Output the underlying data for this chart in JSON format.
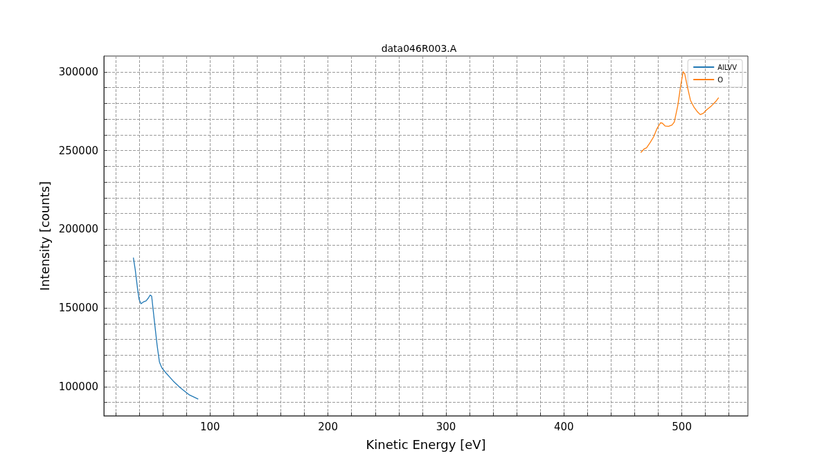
{
  "chart_data": {
    "type": "line",
    "title": "data046R003.A",
    "xlabel": "Kinetic Energy [eV]",
    "ylabel": "Intensity [counts]",
    "xlim": [
      10,
      556
    ],
    "ylim": [
      81500,
      310000
    ],
    "xticks": [
      {
        "value": 20,
        "label": null
      },
      {
        "value": 40,
        "label": null
      },
      {
        "value": 60,
        "label": null
      },
      {
        "value": 80,
        "label": null
      },
      100,
      {
        "value": 120,
        "label": null
      },
      {
        "value": 140,
        "label": null
      },
      {
        "value": 160,
        "label": null
      },
      {
        "value": 180,
        "label": null
      },
      200,
      {
        "value": 220,
        "label": null
      },
      {
        "value": 240,
        "label": null
      },
      {
        "value": 260,
        "label": null
      },
      {
        "value": 280,
        "label": null
      },
      300,
      {
        "value": 320,
        "label": null
      },
      {
        "value": 340,
        "label": null
      },
      {
        "value": 360,
        "label": null
      },
      {
        "value": 380,
        "label": null
      },
      400,
      {
        "value": 420,
        "label": null
      },
      {
        "value": 440,
        "label": null
      },
      {
        "value": 460,
        "label": null
      },
      {
        "value": 480,
        "label": null
      },
      500,
      {
        "value": 520,
        "label": null
      },
      {
        "value": 540,
        "label": null
      }
    ],
    "yticks": [
      {
        "value": 90000,
        "label": null
      },
      100000,
      {
        "value": 110000,
        "label": null
      },
      {
        "value": 120000,
        "label": null
      },
      {
        "value": 130000,
        "label": null
      },
      {
        "value": 140000,
        "label": null
      },
      150000,
      {
        "value": 160000,
        "label": null
      },
      {
        "value": 170000,
        "label": null
      },
      {
        "value": 180000,
        "label": null
      },
      {
        "value": 190000,
        "label": null
      },
      200000,
      {
        "value": 210000,
        "label": null
      },
      {
        "value": 220000,
        "label": null
      },
      {
        "value": 230000,
        "label": null
      },
      {
        "value": 240000,
        "label": null
      },
      250000,
      {
        "value": 260000,
        "label": null
      },
      {
        "value": 270000,
        "label": null
      },
      {
        "value": 280000,
        "label": null
      },
      {
        "value": 290000,
        "label": null
      },
      300000
    ],
    "grid": true,
    "legend": "top right",
    "marker": "none",
    "line_style": "solid",
    "series": [
      {
        "name": "AlLVV",
        "color": "#1f77b4",
        "x": [
          35.0,
          36.6,
          38.5,
          39.9,
          41.5,
          43.5,
          45.8,
          47.7,
          49.3,
          50.5,
          51.7,
          53.2,
          55.2,
          57.1,
          59.1,
          63.0,
          68.9,
          74.8,
          82.6,
          90.0
        ],
        "values": [
          182000,
          174300,
          162500,
          155300,
          152700,
          153800,
          154500,
          156300,
          158200,
          157500,
          149400,
          139100,
          125900,
          115700,
          112000,
          108400,
          103500,
          99300,
          94700,
          92100
        ]
      },
      {
        "name": "O",
        "color": "#ff7f0e",
        "x": [
          465.2,
          468.2,
          470.1,
          473.0,
          476.0,
          478.9,
          481.9,
          483.4,
          485.8,
          488.7,
          491.7,
          493.6,
          496.5,
          499.1,
          501.1,
          502.4,
          504.4,
          507.3,
          510.3,
          513.2,
          515.6,
          518.1,
          521.0,
          525.0,
          528.8,
          531.2
        ],
        "values": [
          248700,
          251100,
          251700,
          254900,
          258600,
          263900,
          267600,
          267400,
          265600,
          265300,
          266200,
          268100,
          278300,
          291500,
          300000,
          298800,
          291500,
          281900,
          277500,
          274600,
          272800,
          273600,
          275800,
          278300,
          281200,
          283600
        ]
      }
    ]
  }
}
